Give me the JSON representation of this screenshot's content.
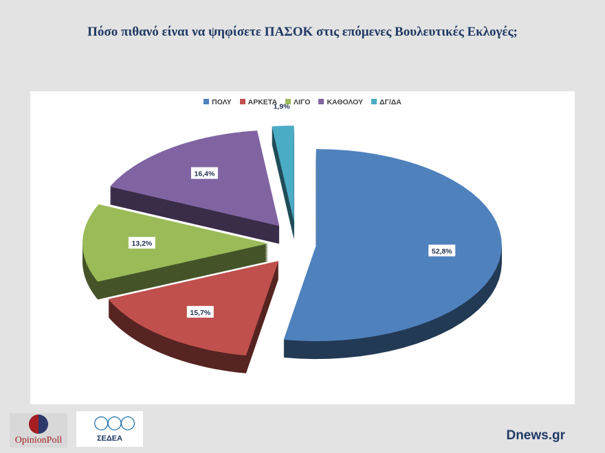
{
  "title": "Πόσο πιθανό είναι να  ψηφίσετε ΠΑΣΟΚ στις επόμενες Βουλευτικές Εκλογές;",
  "chart_data": {
    "type": "pie",
    "style": "3d-exploded",
    "legend_position": "top",
    "categories": [
      "ΠΟΛΥ",
      "ΑΡΚΕΤΑ",
      "ΛΙΓΟ",
      "ΚΑΘΟΛΟΥ",
      "ΔΓ/ΔΑ"
    ],
    "values": [
      52.8,
      15.7,
      13.2,
      16.4,
      1.9
    ],
    "labels": [
      "52,8%",
      "15,7%",
      "13,2%",
      "16,4%",
      "1,9%"
    ],
    "colors": [
      "#4f81bd",
      "#c0504d",
      "#9bbb59",
      "#8064a2",
      "#4bacc6"
    ]
  },
  "logos": {
    "opinion_poll": "OpinionPoll",
    "sedea": "ΣΕΔΕΑ"
  },
  "source": "Dnews.gr"
}
